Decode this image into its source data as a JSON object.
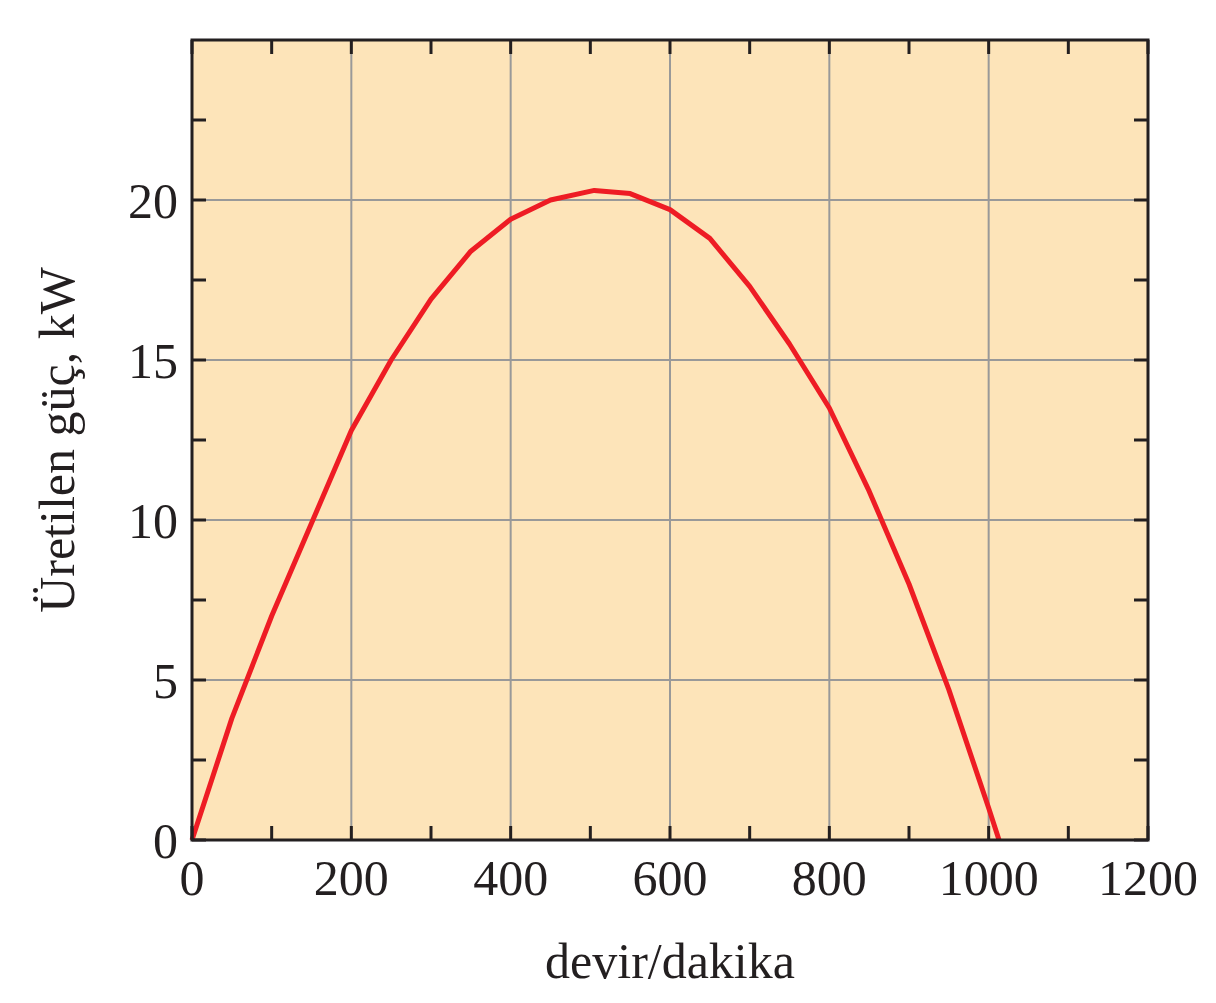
{
  "chart_data": {
    "type": "line",
    "xlabel": "devir/dakika",
    "ylabel": "Üretilen güç, kW",
    "x": [
      0,
      50,
      100,
      150,
      200,
      250,
      300,
      350,
      400,
      450,
      505,
      550,
      600,
      650,
      700,
      750,
      800,
      850,
      900,
      950,
      1000,
      1013
    ],
    "series": [
      {
        "color": "#ee1c24",
        "values": [
          0,
          3.8,
          7.0,
          9.9,
          12.8,
          15.0,
          16.9,
          18.4,
          19.4,
          20.0,
          20.3,
          20.2,
          19.7,
          18.8,
          17.3,
          15.5,
          13.5,
          10.9,
          8.0,
          4.7,
          1.0,
          0
        ]
      }
    ],
    "xlim": [
      0,
      1200
    ],
    "ylim": [
      0,
      25
    ],
    "xticks": [
      0,
      {
        "value": 100,
        "label": null
      },
      200,
      {
        "value": 300,
        "label": null
      },
      400,
      {
        "value": 500,
        "label": null
      },
      600,
      {
        "value": 700,
        "label": null
      },
      800,
      {
        "value": 900,
        "label": null
      },
      1000,
      {
        "value": 1100,
        "label": null
      },
      1200
    ],
    "yticks": [
      0,
      {
        "value": 2.5,
        "label": null
      },
      5,
      {
        "value": 7.5,
        "label": null
      },
      10,
      {
        "value": 12.5,
        "label": null
      },
      15,
      {
        "value": 17.5,
        "label": null
      },
      20,
      {
        "value": 22.5,
        "label": null
      }
    ],
    "grid": true,
    "marker": "none",
    "line_style": "solid"
  }
}
